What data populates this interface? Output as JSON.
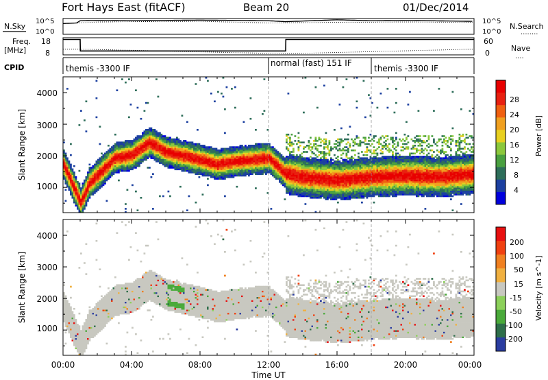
{
  "header": {
    "station": "Fort Hays East (fitACF)",
    "beam": "Beam 20",
    "date": "01/Dec/2014"
  },
  "strip_labels": {
    "nsky": "N.Sky",
    "nsearch": "N.Search",
    "freq": "Freq.",
    "mhz": "[MHz]",
    "nave": "Nave",
    "cpid": "CPID",
    "dots": "........",
    "dots_short": "....",
    "y_noise_top": "10^5",
    "y_noise_bot": "10^0",
    "y_freq_top": "18",
    "y_freq_bot": "8",
    "y_nave_top": "60",
    "y_nave_bot": "0"
  },
  "cpid_segments": [
    {
      "label": "themis -3300 IF",
      "start_hour": 0
    },
    {
      "label": "normal (fast) 151 IF",
      "start_hour": 12
    },
    {
      "label": "themis -3300 IF",
      "start_hour": 18
    }
  ],
  "x_axis": {
    "label": "Time UT",
    "ticks": [
      "00:00",
      "04:00",
      "08:00",
      "12:00",
      "16:00",
      "20:00",
      "00:00"
    ]
  },
  "power_panel": {
    "ylabel": "Slant Range [km]",
    "yticks": [
      "1000",
      "2000",
      "3000",
      "4000"
    ],
    "colorbar_label": "Power [dB]",
    "colorbar_ticks": [
      "28",
      "24",
      "20",
      "16",
      "12",
      "8",
      "4"
    ],
    "colors": [
      "#0000dd",
      "#1c40a0",
      "#2e6e5a",
      "#4aa040",
      "#8cc83c",
      "#e8d020",
      "#f0a020",
      "#f06010",
      "#e82010",
      "#e80000"
    ]
  },
  "velocity_panel": {
    "ylabel": "Slant Range [km]",
    "yticks": [
      "1000",
      "2000",
      "3000",
      "4000"
    ],
    "colorbar_label": "Velocity [m s^-1]",
    "colorbar_ticks": [
      "200",
      "100",
      "50",
      "15",
      "-15",
      "-50",
      "-100",
      "-200"
    ],
    "colors": [
      "#2a3ca0",
      "#2e6e4a",
      "#4aaa3a",
      "#8cd05a",
      "#c8c8c0",
      "#f0b040",
      "#f08020",
      "#f04010",
      "#e81010"
    ]
  },
  "chart_data": [
    {
      "type": "line",
      "title": "Fort Hays East (fitACF) Beam 20 01/Dec/2014",
      "series": [
        {
          "name": "N.Sky",
          "x": [
            0,
            0.8,
            1,
            2,
            4,
            6,
            8,
            10,
            12,
            13,
            16,
            18,
            20,
            24
          ],
          "y": [
            3.4,
            3.6,
            4.3,
            4.4,
            4.3,
            4.4,
            4.5,
            4.4,
            4.3,
            4.0,
            4.6,
            4.3,
            4.4,
            4.1
          ]
        },
        {
          "name": "N.Search",
          "x": [
            0,
            2,
            4,
            8,
            12,
            16,
            20,
            24
          ],
          "y": [
            3.4,
            3.9,
            4.0,
            4.1,
            3.6,
            3.8,
            3.9,
            3.8
          ]
        }
      ],
      "xlabel": "Time UT",
      "ylabel": "N.Sky",
      "xlim": [
        0,
        24
      ],
      "ylim": [
        0,
        5
      ]
    },
    {
      "type": "line",
      "series": [
        {
          "name": "Freq.",
          "x": [
            0,
            1.0,
            1.01,
            13.0,
            13.01,
            24
          ],
          "y": [
            17,
            17,
            10.3,
            10.3,
            17,
            17
          ]
        },
        {
          "name": "Nave",
          "x": [
            0,
            1,
            13,
            24
          ],
          "y": [
            20,
            20,
            4,
            20
          ]
        }
      ],
      "ylabel": "Freq. [MHz]",
      "xlim": [
        0,
        24
      ],
      "ylim": [
        8,
        18
      ]
    },
    {
      "type": "heatmap",
      "title": "Power",
      "xlabel": "Time UT",
      "ylabel": "Slant Range [km]",
      "colorbar_label": "Power [dB]",
      "xlim": [
        0,
        24
      ],
      "ylim": [
        200,
        4500
      ],
      "zlim": [
        0,
        30
      ],
      "band_center_km": {
        "x": [
          0,
          1,
          1.5,
          3,
          4,
          5,
          6,
          8,
          9,
          10,
          12,
          13,
          14,
          16,
          18,
          20,
          22,
          24
        ],
        "y": [
          1700,
          500,
          1100,
          1900,
          2000,
          2400,
          2100,
          1850,
          1700,
          1800,
          1900,
          1400,
          1300,
          1200,
          1300,
          1350,
          1300,
          1400
        ]
      },
      "band_half_width_km": 350
    },
    {
      "type": "heatmap",
      "title": "Velocity",
      "xlabel": "Time UT",
      "ylabel": "Slant Range [km]",
      "colorbar_label": "Velocity [m s^-1]",
      "xlim": [
        0,
        24
      ],
      "ylim": [
        200,
        4500
      ],
      "zlim": [
        -200,
        200
      ]
    }
  ]
}
